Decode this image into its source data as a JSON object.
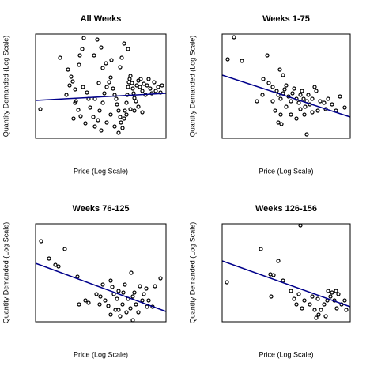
{
  "chart_data": [
    {
      "type": "scatter",
      "title": "All Weeks",
      "xlabel": "Price (Log Scale)",
      "ylabel": "Quantity Demanded (Log Scale)",
      "color": "#000000",
      "xlim": [
        0,
        165
      ],
      "ylim": [
        0,
        132
      ],
      "x": [
        6,
        31,
        41,
        45,
        47,
        55,
        56,
        59,
        61,
        74,
        78,
        83,
        85,
        89,
        96,
        109,
        107,
        112,
        117,
        39,
        50,
        48,
        60,
        65,
        67,
        69,
        73,
        75,
        79,
        81,
        85,
        87,
        90,
        93,
        95,
        98,
        100,
        102,
        103,
        105,
        107,
        108,
        110,
        112,
        113,
        115,
        116,
        117,
        118,
        119,
        120,
        122,
        123,
        124,
        125,
        127,
        128,
        130,
        132,
        133,
        135,
        137,
        139,
        141,
        143,
        145,
        147,
        150,
        152,
        155,
        158,
        160,
        51,
        54,
        57,
        63,
        100,
        105,
        83,
        90,
        95,
        115,
        120,
        125,
        130,
        135,
        50,
        43,
        75,
        80
      ],
      "values": [
        37,
        102,
        87,
        78,
        72,
        93,
        105,
        113,
        127,
        105,
        125,
        115,
        89,
        95,
        99,
        102,
        90,
        120,
        113,
        55,
        45,
        25,
        65,
        58,
        50,
        39,
        27,
        15,
        23,
        35,
        45,
        57,
        65,
        71,
        77,
        63,
        55,
        50,
        43,
        35,
        27,
        20,
        13,
        25,
        35,
        45,
        55,
        65,
        71,
        75,
        79,
        70,
        63,
        57,
        51,
        47,
        67,
        73,
        65,
        75,
        60,
        69,
        55,
        67,
        75,
        63,
        57,
        71,
        60,
        65,
        58,
        67,
        47,
        36,
        28,
        19,
        15,
        7,
        10,
        20,
        30,
        30,
        37,
        35,
        40,
        33,
        62,
        67,
        50,
        70
      ],
      "fit": {
        "color": "#00008b",
        "x": [
          0,
          165
        ],
        "values": [
          48,
          57
        ]
      }
    },
    {
      "type": "scatter",
      "title": "Weeks 1-75",
      "xlabel": "Price (Log Scale)",
      "ylabel": "Quantity Demanded (Log Scale)",
      "color": "#000000",
      "xlim": [
        0,
        162
      ],
      "ylim": [
        0,
        132
      ],
      "x": [
        15,
        7,
        25,
        57,
        73,
        77,
        52,
        59,
        64,
        69,
        71,
        74,
        77,
        79,
        81,
        84,
        87,
        89,
        91,
        94,
        97,
        99,
        101,
        103,
        105,
        107,
        109,
        111,
        114,
        117,
        119,
        121,
        124,
        129,
        131,
        134,
        139,
        144,
        149,
        155,
        67,
        74,
        71,
        75,
        87,
        94,
        99,
        104,
        107,
        81,
        64,
        51,
        44,
        114
      ],
      "values": [
        128,
        100,
        98,
        105,
        87,
        80,
        75,
        70,
        65,
        60,
        55,
        50,
        57,
        62,
        67,
        53,
        47,
        57,
        63,
        50,
        45,
        55,
        60,
        50,
        40,
        47,
        55,
        43,
        50,
        65,
        60,
        35,
        47,
        45,
        37,
        50,
        43,
        35,
        53,
        39,
        35,
        30,
        20,
        18,
        30,
        25,
        37,
        30,
        5,
        40,
        47,
        55,
        47,
        33
      ],
      "fit": {
        "color": "#00008b",
        "x": [
          0,
          162
        ],
        "values": [
          80,
          27
        ]
      }
    },
    {
      "type": "scatter",
      "title": "Weeks 76-125",
      "xlabel": "Price (Log Scale)",
      "ylabel": "Quantity Demanded (Log Scale)",
      "color": "#000000",
      "xlim": [
        0,
        165
      ],
      "ylim": [
        0,
        124
      ],
      "x": [
        7,
        17,
        25,
        29,
        37,
        53,
        55,
        63,
        67,
        77,
        81,
        82,
        85,
        88,
        92,
        95,
        97,
        99,
        101,
        103,
        105,
        107,
        110,
        111,
        113,
        115,
        117,
        120,
        121,
        123,
        125,
        127,
        130,
        132,
        135,
        137,
        140,
        143,
        148,
        151,
        158,
        141,
        105,
        123,
        95
      ],
      "values": [
        102,
        80,
        72,
        70,
        92,
        57,
        22,
        27,
        24,
        35,
        22,
        32,
        47,
        27,
        20,
        52,
        44,
        35,
        15,
        29,
        39,
        7,
        22,
        37,
        47,
        12,
        29,
        17,
        62,
        32,
        37,
        22,
        12,
        45,
        27,
        35,
        42,
        27,
        19,
        45,
        55,
        19,
        15,
        2,
        9
      ],
      "fit": {
        "color": "#00008b",
        "x": [
          0,
          165
        ],
        "values": [
          74,
          13
        ]
      }
    },
    {
      "type": "scatter",
      "title": "Weeks 126-156",
      "xlabel": "Price (Log Scale)",
      "ylabel": "Quantity Demanded (Log Scale)",
      "color": "#000000",
      "xlim": [
        0,
        162
      ],
      "ylim": [
        0,
        124
      ],
      "x": [
        6,
        49,
        61,
        65,
        71,
        77,
        99,
        62,
        87,
        91,
        94,
        97,
        101,
        104,
        111,
        114,
        117,
        119,
        122,
        125,
        129,
        131,
        134,
        137,
        139,
        142,
        145,
        147,
        151,
        155,
        157,
        144,
        133,
        121
      ],
      "values": [
        50,
        92,
        60,
        59,
        77,
        52,
        122,
        32,
        39,
        29,
        22,
        35,
        17,
        27,
        22,
        32,
        15,
        5,
        9,
        15,
        22,
        7,
        39,
        32,
        37,
        27,
        17,
        35,
        22,
        27,
        15,
        39,
        27,
        29
      ],
      "fit": {
        "color": "#00008b",
        "x": [
          0,
          162
        ],
        "values": [
          77,
          19
        ]
      }
    }
  ]
}
